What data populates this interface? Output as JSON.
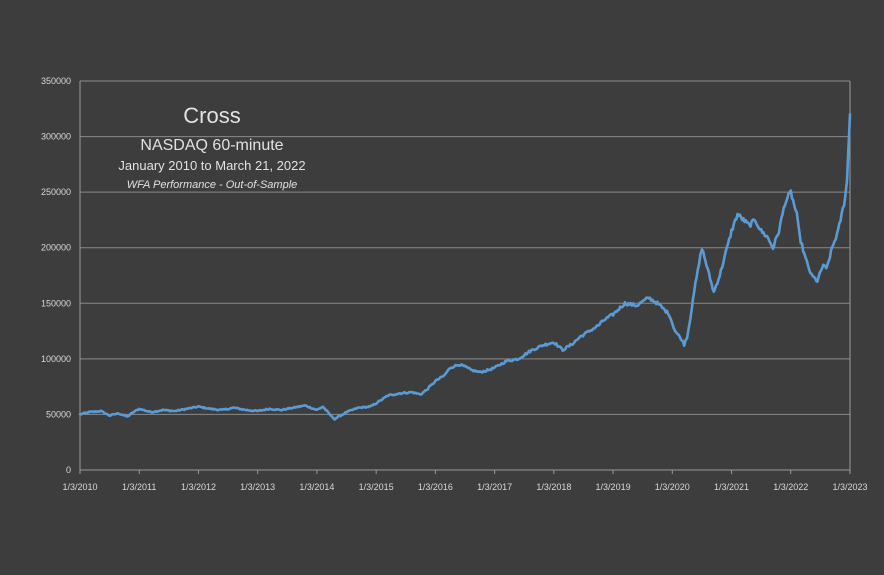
{
  "chart_data": {
    "type": "line",
    "title": "Cross",
    "subtitle": "NASDAQ 60-minute",
    "date_range_text": "January 2010 to March 21, 2022",
    "note": "WFA Performance - Out-of-Sample",
    "xlabel": "",
    "ylabel": "",
    "grid": true,
    "ylim": [
      0,
      350000
    ],
    "xlim": [
      "1/3/2010",
      "1/3/2023"
    ],
    "y_ticks": [
      0,
      50000,
      100000,
      150000,
      200000,
      250000,
      300000,
      350000
    ],
    "y_tick_labels": [
      "0",
      "50000",
      "100000",
      "150000",
      "200000",
      "250000",
      "300000",
      "350000"
    ],
    "x_ticks": [
      2010,
      2011,
      2012,
      2013,
      2014,
      2015,
      2016,
      2017,
      2018,
      2019,
      2020,
      2021,
      2022,
      2023
    ],
    "x_tick_labels": [
      "1/3/2010",
      "1/3/2011",
      "1/3/2012",
      "1/3/2013",
      "1/3/2014",
      "1/3/2015",
      "1/3/2016",
      "1/3/2017",
      "1/3/2018",
      "1/3/2019",
      "1/3/2020",
      "1/3/2021",
      "1/3/2022",
      "1/3/2023"
    ],
    "series": [
      {
        "color": "#5b9bd5",
        "x": [
          2010.0,
          2010.15,
          2010.35,
          2010.5,
          2010.65,
          2010.8,
          2010.9,
          2011.0,
          2011.2,
          2011.4,
          2011.6,
          2011.8,
          2012.0,
          2012.2,
          2012.4,
          2012.6,
          2012.8,
          2013.0,
          2013.2,
          2013.4,
          2013.6,
          2013.8,
          2014.0,
          2014.1,
          2014.25,
          2014.3,
          2014.5,
          2014.7,
          2014.9,
          2015.0,
          2015.2,
          2015.4,
          2015.6,
          2015.75,
          2015.85,
          2016.0,
          2016.15,
          2016.25,
          2016.4,
          2016.5,
          2016.6,
          2016.75,
          2016.9,
          2017.0,
          2017.2,
          2017.4,
          2017.6,
          2017.8,
          2018.0,
          2018.15,
          2018.3,
          2018.45,
          2018.6,
          2018.75,
          2018.85,
          2019.0,
          2019.2,
          2019.4,
          2019.6,
          2019.75,
          2019.85,
          2019.95,
          2020.0,
          2020.05,
          2020.15,
          2020.2,
          2020.25,
          2020.3,
          2020.35,
          2020.45,
          2020.5,
          2020.6,
          2020.7,
          2020.8,
          2020.9,
          2021.0,
          2021.1,
          2021.2,
          2021.3,
          2021.4,
          2021.5,
          2021.6,
          2021.7,
          2021.8,
          2021.9,
          2022.0,
          2022.1,
          2022.15,
          2022.25,
          2022.35,
          2022.45,
          2022.55,
          2022.6,
          2022.7,
          2022.8,
          2022.9,
          2022.95,
          2023.0
        ],
        "y": [
          50000,
          52000,
          53000,
          49000,
          51000,
          48000,
          52000,
          55000,
          52000,
          54000,
          53000,
          55000,
          57000,
          55000,
          54000,
          56000,
          54000,
          53000,
          55000,
          54000,
          56000,
          58000,
          54000,
          57000,
          48000,
          46000,
          52000,
          56000,
          57000,
          60000,
          67000,
          69000,
          70000,
          68000,
          72000,
          80000,
          85000,
          92000,
          95000,
          93000,
          90000,
          88000,
          90000,
          92000,
          98000,
          100000,
          107000,
          112000,
          115000,
          108000,
          113000,
          120000,
          125000,
          130000,
          135000,
          140000,
          150000,
          148000,
          155000,
          150000,
          145000,
          140000,
          132000,
          125000,
          118000,
          113000,
          120000,
          135000,
          155000,
          185000,
          200000,
          180000,
          160000,
          175000,
          195000,
          215000,
          230000,
          225000,
          220000,
          225000,
          215000,
          210000,
          200000,
          215000,
          240000,
          250000,
          230000,
          210000,
          190000,
          175000,
          170000,
          185000,
          180000,
          200000,
          215000,
          240000,
          260000,
          320000
        ]
      }
    ]
  }
}
